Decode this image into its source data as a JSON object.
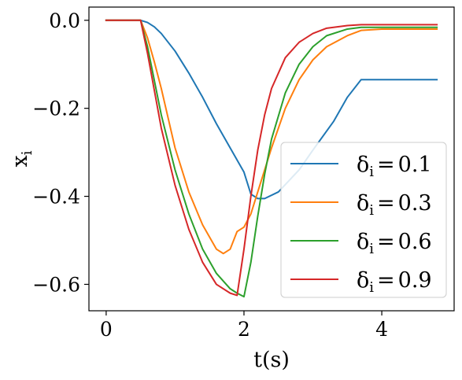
{
  "chart_data": {
    "type": "line",
    "xlabel": "t(s)",
    "ylabel": "x",
    "ylabel_subscript": "i",
    "xlim": [
      -0.25,
      5.05
    ],
    "ylim": [
      -0.66,
      0.03
    ],
    "x_ticks": [
      0,
      2,
      4
    ],
    "x_tick_labels": [
      "0",
      "2",
      "4"
    ],
    "y_ticks": [
      0.0,
      -0.2,
      -0.4,
      -0.6
    ],
    "y_tick_labels": [
      "0.0",
      "−0.2",
      "−0.4",
      "−0.6"
    ],
    "grid": false,
    "legend_position": "lower-right",
    "legend": [
      {
        "symbol": "δ",
        "subscript": "i",
        "equals": "=",
        "value": "0.1"
      },
      {
        "symbol": "δ",
        "subscript": "i",
        "equals": "=",
        "value": "0.3"
      },
      {
        "symbol": "δ",
        "subscript": "i",
        "equals": "=",
        "value": "0.6"
      },
      {
        "symbol": "δ",
        "subscript": "i",
        "equals": "=",
        "value": "0.9"
      }
    ],
    "series": [
      {
        "color": "#1f77b4",
        "x": [
          0,
          0.5,
          0.6,
          0.7,
          0.8,
          1.0,
          1.2,
          1.4,
          1.6,
          1.8,
          2.0,
          2.1,
          2.2,
          2.3,
          2.5,
          2.8,
          3.0,
          3.3,
          3.5,
          3.7,
          4.0,
          4.5,
          4.8
        ],
        "y": [
          0,
          0,
          -0.005,
          -0.015,
          -0.03,
          -0.07,
          -0.12,
          -0.175,
          -0.235,
          -0.29,
          -0.345,
          -0.395,
          -0.405,
          -0.405,
          -0.39,
          -0.34,
          -0.295,
          -0.23,
          -0.175,
          -0.135,
          -0.135,
          -0.135,
          -0.135
        ]
      },
      {
        "color": "#ff7f0e",
        "x": [
          0,
          0.5,
          0.6,
          0.7,
          0.8,
          1.0,
          1.2,
          1.4,
          1.6,
          1.7,
          1.8,
          1.9,
          2.0,
          2.1,
          2.2,
          2.4,
          2.6,
          2.8,
          3.0,
          3.2,
          3.5,
          3.7,
          4.0,
          4.5,
          4.8
        ],
        "y": [
          0,
          0,
          -0.04,
          -0.095,
          -0.155,
          -0.29,
          -0.39,
          -0.465,
          -0.52,
          -0.53,
          -0.52,
          -0.48,
          -0.47,
          -0.44,
          -0.39,
          -0.29,
          -0.2,
          -0.135,
          -0.09,
          -0.06,
          -0.035,
          -0.023,
          -0.02,
          -0.02,
          -0.02
        ]
      },
      {
        "color": "#2ca02c",
        "x": [
          0,
          0.5,
          0.6,
          0.8,
          1.0,
          1.2,
          1.4,
          1.6,
          1.8,
          1.9,
          2.0,
          2.1,
          2.2,
          2.3,
          2.4,
          2.6,
          2.8,
          3.0,
          3.2,
          3.5,
          3.7,
          4.0,
          4.5,
          4.8
        ],
        "y": [
          0,
          0,
          -0.06,
          -0.215,
          -0.34,
          -0.44,
          -0.52,
          -0.575,
          -0.61,
          -0.62,
          -0.628,
          -0.55,
          -0.445,
          -0.35,
          -0.27,
          -0.165,
          -0.1,
          -0.06,
          -0.035,
          -0.02,
          -0.016,
          -0.016,
          -0.016,
          -0.016
        ]
      },
      {
        "color": "#d62728",
        "x": [
          0,
          0.5,
          0.6,
          0.8,
          1.0,
          1.2,
          1.4,
          1.6,
          1.8,
          1.9,
          2.0,
          2.1,
          2.2,
          2.3,
          2.4,
          2.6,
          2.8,
          3.0,
          3.2,
          3.5,
          3.7,
          4.0,
          4.5,
          4.8
        ],
        "y": [
          0,
          0,
          -0.075,
          -0.245,
          -0.375,
          -0.475,
          -0.55,
          -0.6,
          -0.62,
          -0.625,
          -0.52,
          -0.4,
          -0.295,
          -0.215,
          -0.155,
          -0.085,
          -0.05,
          -0.03,
          -0.018,
          -0.012,
          -0.01,
          -0.01,
          -0.01,
          -0.01
        ]
      }
    ]
  }
}
